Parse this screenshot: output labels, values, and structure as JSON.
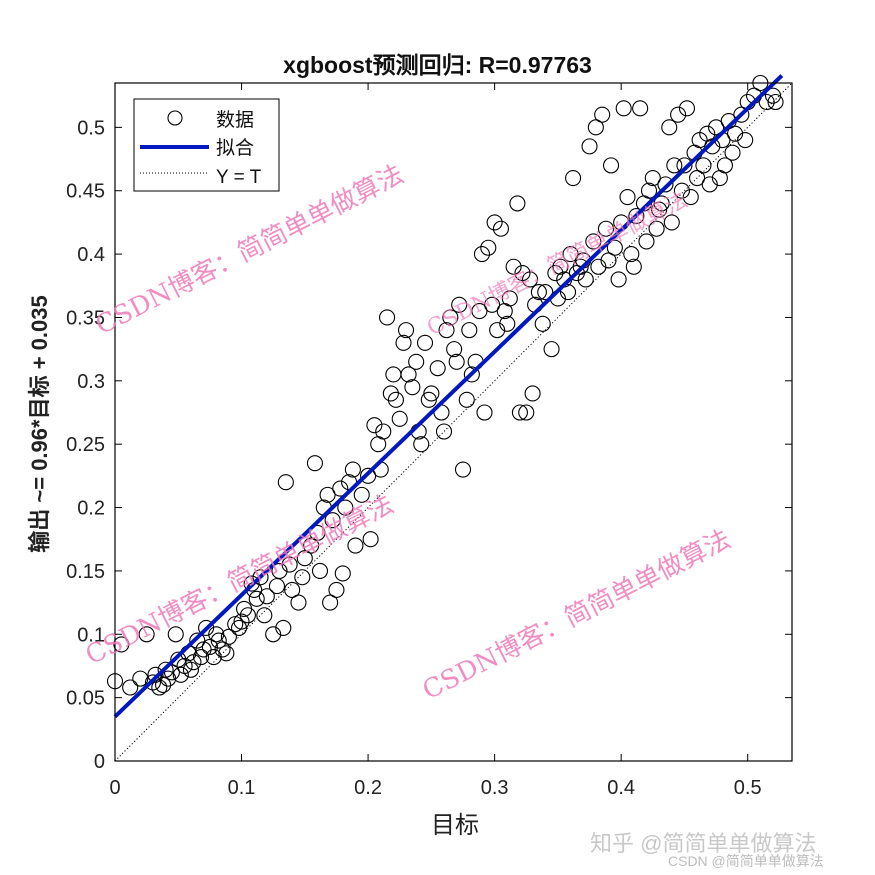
{
  "chart_data": {
    "type": "scatter",
    "title": "xgboost预测回归: R=0.97763",
    "xlabel": "目标",
    "ylabel": "输出 ~= 0.96*目标 + 0.035",
    "xlim": [
      0,
      0.535
    ],
    "ylim": [
      0,
      0.535
    ],
    "xticks": [
      0,
      0.1,
      0.2,
      0.3,
      0.4,
      0.5
    ],
    "yticks": [
      0,
      0.05,
      0.1,
      0.15,
      0.2,
      0.25,
      0.3,
      0.35,
      0.4,
      0.45,
      0.5
    ],
    "xtick_labels": [
      "0",
      "0.1",
      "0.2",
      "0.3",
      "0.4",
      "0.5"
    ],
    "ytick_labels": [
      "0",
      "0.05",
      "0.1",
      "0.15",
      "0.2",
      "0.25",
      "0.3",
      "0.35",
      "0.4",
      "0.45",
      "0.5"
    ],
    "grid": false,
    "legend_position": "upper-left",
    "legend": [
      {
        "label": "数据",
        "style": "open-circle",
        "color": "#000000"
      },
      {
        "label": "拟合",
        "style": "solid-line",
        "color": "#0018c0"
      },
      {
        "label": "Y = T",
        "style": "dotted-line",
        "color": "#000000"
      }
    ],
    "fit": {
      "slope": 0.96,
      "intercept": 0.035,
      "r": 0.97763
    },
    "series": [
      {
        "name": "数据",
        "points": [
          [
            0.0,
            0.063
          ],
          [
            0.005,
            0.092
          ],
          [
            0.012,
            0.058
          ],
          [
            0.02,
            0.065
          ],
          [
            0.025,
            0.1
          ],
          [
            0.03,
            0.062
          ],
          [
            0.032,
            0.068
          ],
          [
            0.035,
            0.058
          ],
          [
            0.038,
            0.06
          ],
          [
            0.04,
            0.072
          ],
          [
            0.042,
            0.065
          ],
          [
            0.045,
            0.07
          ],
          [
            0.048,
            0.1
          ],
          [
            0.05,
            0.08
          ],
          [
            0.052,
            0.068
          ],
          [
            0.055,
            0.075
          ],
          [
            0.058,
            0.085
          ],
          [
            0.06,
            0.072
          ],
          [
            0.062,
            0.078
          ],
          [
            0.065,
            0.095
          ],
          [
            0.068,
            0.082
          ],
          [
            0.07,
            0.088
          ],
          [
            0.072,
            0.105
          ],
          [
            0.075,
            0.09
          ],
          [
            0.078,
            0.082
          ],
          [
            0.08,
            0.1
          ],
          [
            0.082,
            0.095
          ],
          [
            0.085,
            0.088
          ],
          [
            0.088,
            0.085
          ],
          [
            0.09,
            0.098
          ],
          [
            0.095,
            0.108
          ],
          [
            0.098,
            0.105
          ],
          [
            0.1,
            0.11
          ],
          [
            0.102,
            0.12
          ],
          [
            0.105,
            0.115
          ],
          [
            0.108,
            0.14
          ],
          [
            0.11,
            0.135
          ],
          [
            0.112,
            0.128
          ],
          [
            0.115,
            0.145
          ],
          [
            0.118,
            0.115
          ],
          [
            0.12,
            0.13
          ],
          [
            0.125,
            0.1
          ],
          [
            0.128,
            0.138
          ],
          [
            0.13,
            0.15
          ],
          [
            0.133,
            0.105
          ],
          [
            0.135,
            0.22
          ],
          [
            0.138,
            0.155
          ],
          [
            0.14,
            0.135
          ],
          [
            0.145,
            0.125
          ],
          [
            0.148,
            0.145
          ],
          [
            0.15,
            0.16
          ],
          [
            0.155,
            0.17
          ],
          [
            0.158,
            0.235
          ],
          [
            0.16,
            0.18
          ],
          [
            0.162,
            0.15
          ],
          [
            0.165,
            0.2
          ],
          [
            0.168,
            0.21
          ],
          [
            0.17,
            0.125
          ],
          [
            0.172,
            0.19
          ],
          [
            0.175,
            0.135
          ],
          [
            0.178,
            0.215
          ],
          [
            0.18,
            0.148
          ],
          [
            0.182,
            0.2
          ],
          [
            0.185,
            0.22
          ],
          [
            0.188,
            0.23
          ],
          [
            0.19,
            0.17
          ],
          [
            0.195,
            0.21
          ],
          [
            0.2,
            0.225
          ],
          [
            0.202,
            0.175
          ],
          [
            0.205,
            0.265
          ],
          [
            0.208,
            0.25
          ],
          [
            0.21,
            0.23
          ],
          [
            0.212,
            0.26
          ],
          [
            0.215,
            0.35
          ],
          [
            0.218,
            0.29
          ],
          [
            0.22,
            0.305
          ],
          [
            0.222,
            0.285
          ],
          [
            0.225,
            0.27
          ],
          [
            0.228,
            0.33
          ],
          [
            0.23,
            0.34
          ],
          [
            0.232,
            0.305
          ],
          [
            0.235,
            0.295
          ],
          [
            0.238,
            0.315
          ],
          [
            0.24,
            0.26
          ],
          [
            0.242,
            0.25
          ],
          [
            0.245,
            0.33
          ],
          [
            0.248,
            0.285
          ],
          [
            0.25,
            0.29
          ],
          [
            0.255,
            0.31
          ],
          [
            0.258,
            0.275
          ],
          [
            0.26,
            0.26
          ],
          [
            0.262,
            0.34
          ],
          [
            0.265,
            0.35
          ],
          [
            0.268,
            0.325
          ],
          [
            0.27,
            0.315
          ],
          [
            0.272,
            0.36
          ],
          [
            0.275,
            0.23
          ],
          [
            0.278,
            0.285
          ],
          [
            0.28,
            0.34
          ],
          [
            0.282,
            0.305
          ],
          [
            0.285,
            0.315
          ],
          [
            0.288,
            0.355
          ],
          [
            0.29,
            0.4
          ],
          [
            0.292,
            0.275
          ],
          [
            0.295,
            0.405
          ],
          [
            0.298,
            0.36
          ],
          [
            0.3,
            0.425
          ],
          [
            0.302,
            0.34
          ],
          [
            0.305,
            0.42
          ],
          [
            0.308,
            0.355
          ],
          [
            0.31,
            0.345
          ],
          [
            0.312,
            0.365
          ],
          [
            0.315,
            0.39
          ],
          [
            0.318,
            0.44
          ],
          [
            0.32,
            0.275
          ],
          [
            0.322,
            0.385
          ],
          [
            0.325,
            0.275
          ],
          [
            0.328,
            0.38
          ],
          [
            0.33,
            0.29
          ],
          [
            0.332,
            0.36
          ],
          [
            0.335,
            0.37
          ],
          [
            0.338,
            0.345
          ],
          [
            0.34,
            0.37
          ],
          [
            0.345,
            0.325
          ],
          [
            0.348,
            0.385
          ],
          [
            0.35,
            0.365
          ],
          [
            0.352,
            0.39
          ],
          [
            0.355,
            0.38
          ],
          [
            0.358,
            0.37
          ],
          [
            0.36,
            0.4
          ],
          [
            0.362,
            0.46
          ],
          [
            0.365,
            0.385
          ],
          [
            0.368,
            0.39
          ],
          [
            0.37,
            0.395
          ],
          [
            0.372,
            0.38
          ],
          [
            0.375,
            0.485
          ],
          [
            0.378,
            0.41
          ],
          [
            0.38,
            0.5
          ],
          [
            0.382,
            0.39
          ],
          [
            0.385,
            0.51
          ],
          [
            0.388,
            0.42
          ],
          [
            0.39,
            0.395
          ],
          [
            0.392,
            0.47
          ],
          [
            0.395,
            0.405
          ],
          [
            0.398,
            0.38
          ],
          [
            0.4,
            0.425
          ],
          [
            0.402,
            0.515
          ],
          [
            0.405,
            0.445
          ],
          [
            0.408,
            0.4
          ],
          [
            0.41,
            0.39
          ],
          [
            0.412,
            0.43
          ],
          [
            0.415,
            0.515
          ],
          [
            0.418,
            0.44
          ],
          [
            0.42,
            0.41
          ],
          [
            0.422,
            0.45
          ],
          [
            0.425,
            0.46
          ],
          [
            0.428,
            0.42
          ],
          [
            0.43,
            0.435
          ],
          [
            0.432,
            0.44
          ],
          [
            0.435,
            0.455
          ],
          [
            0.438,
            0.5
          ],
          [
            0.44,
            0.425
          ],
          [
            0.442,
            0.47
          ],
          [
            0.445,
            0.51
          ],
          [
            0.448,
            0.45
          ],
          [
            0.45,
            0.47
          ],
          [
            0.452,
            0.515
          ],
          [
            0.455,
            0.445
          ],
          [
            0.458,
            0.48
          ],
          [
            0.46,
            0.46
          ],
          [
            0.462,
            0.49
          ],
          [
            0.465,
            0.47
          ],
          [
            0.468,
            0.495
          ],
          [
            0.47,
            0.455
          ],
          [
            0.472,
            0.485
          ],
          [
            0.475,
            0.5
          ],
          [
            0.478,
            0.46
          ],
          [
            0.48,
            0.49
          ],
          [
            0.482,
            0.47
          ],
          [
            0.485,
            0.505
          ],
          [
            0.488,
            0.48
          ],
          [
            0.49,
            0.495
          ],
          [
            0.495,
            0.51
          ],
          [
            0.498,
            0.49
          ],
          [
            0.5,
            0.52
          ],
          [
            0.505,
            0.525
          ],
          [
            0.51,
            0.535
          ],
          [
            0.515,
            0.52
          ],
          [
            0.52,
            0.525
          ],
          [
            0.522,
            0.52
          ]
        ]
      }
    ]
  },
  "watermarks": {
    "diagonal": [
      "CSDN博客：简简单单做算法",
      "CSDN博客：简简单单做算法",
      "CSDN博客：简简单单做算法",
      "CSDN博客：简简单单做算法"
    ],
    "footer_zhihu": "知乎 @简简单单做算法",
    "footer_csdn": "CSDN @简简单单做算法"
  },
  "colors": {
    "fit_line": "#0018c0",
    "markers": "#000000",
    "watermark": "#ee7ab8",
    "axis": "#000000"
  }
}
